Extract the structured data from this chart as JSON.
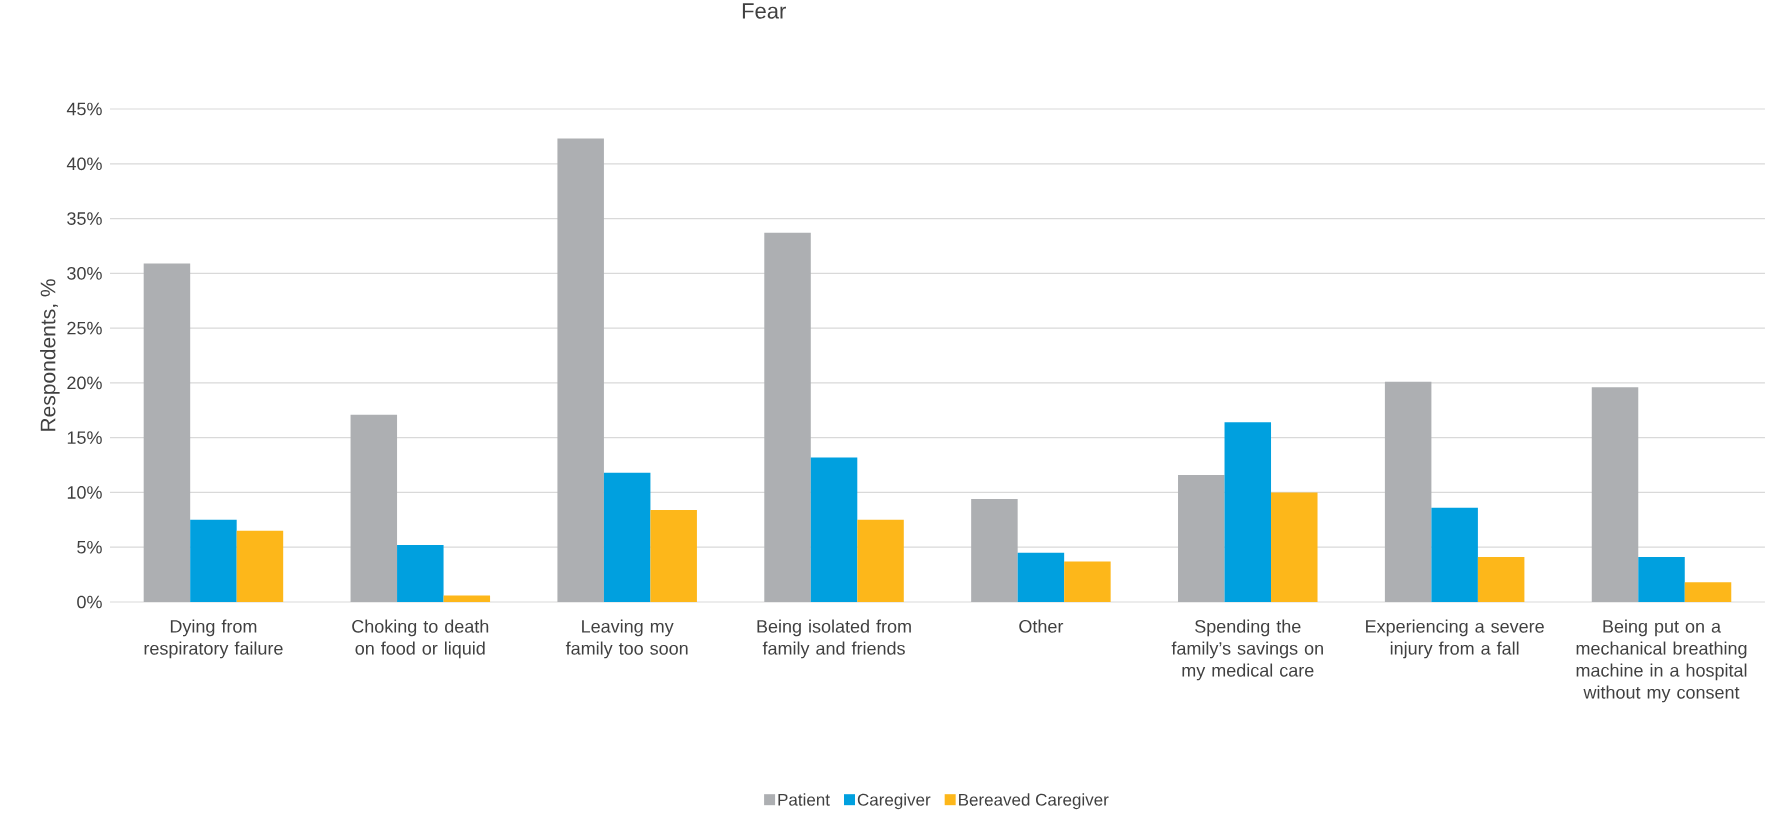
{
  "chart_data": {
    "type": "bar",
    "title": "Fear",
    "ylabel": "Respondents, %",
    "categories": [
      "Dying from respiratory failure",
      "Choking to death on food or liquid",
      "Leaving my family too soon",
      "Being isolated from family and friends",
      "Other",
      "Spending the family’s savings on my medical care",
      "Experiencing a severe injury from a fall",
      "Being put on a mechanical breathing machine in a hospital without my consent"
    ],
    "series": [
      {
        "name": "Patient",
        "color": "#adafb2",
        "values": [
          30.9,
          17.1,
          42.3,
          33.7,
          9.4,
          11.6,
          20.1,
          19.6
        ]
      },
      {
        "name": "Caregiver",
        "color": "#00a0df",
        "values": [
          7.5,
          5.2,
          11.8,
          13.2,
          4.5,
          16.4,
          8.6,
          4.1
        ]
      },
      {
        "name": "Bereaved Caregiver",
        "color": "#fdb71a",
        "values": [
          6.5,
          0.6,
          8.4,
          7.5,
          3.7,
          10.0,
          4.1,
          1.8
        ]
      }
    ],
    "ylim": [
      0,
      45
    ],
    "yticks": [
      {
        "value": 0,
        "label": "0%"
      },
      {
        "value": 5,
        "label": "5%"
      },
      {
        "value": 10,
        "label": "10%"
      },
      {
        "value": 15,
        "label": "15%"
      },
      {
        "value": 20,
        "label": "20%"
      },
      {
        "value": 25,
        "label": "25%"
      },
      {
        "value": 30,
        "label": "30%"
      },
      {
        "value": 35,
        "label": "35%"
      },
      {
        "value": 40,
        "label": "40%"
      },
      {
        "value": 45,
        "label": "45%"
      }
    ],
    "grid": "y",
    "legend": "bottom"
  }
}
